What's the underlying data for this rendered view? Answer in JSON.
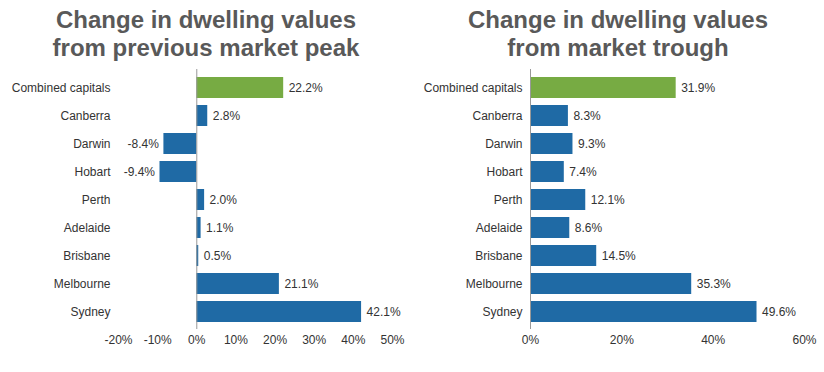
{
  "chart_data": [
    {
      "type": "bar",
      "orientation": "horizontal",
      "title": "Change in dwelling values from previous market peak",
      "categories": [
        "Combined capitals",
        "Canberra",
        "Darwin",
        "Hobart",
        "Perth",
        "Adelaide",
        "Brisbane",
        "Melbourne",
        "Sydney"
      ],
      "values": [
        22.2,
        2.8,
        -8.4,
        -9.4,
        2.0,
        1.1,
        0.5,
        21.1,
        42.1
      ],
      "value_labels": [
        "22.2%",
        "2.8%",
        "-8.4%",
        "-9.4%",
        "2.0%",
        "1.1%",
        "0.5%",
        "21.1%",
        "42.1%"
      ],
      "colors": [
        "#77ab43",
        "#1f6aa5",
        "#1f6aa5",
        "#1f6aa5",
        "#1f6aa5",
        "#1f6aa5",
        "#1f6aa5",
        "#1f6aa5",
        "#1f6aa5"
      ],
      "data_labels": true,
      "grid": false,
      "xlim": [
        -20,
        50
      ],
      "xticks": [
        {
          "value": -20,
          "label": "-20%"
        },
        {
          "value": -10,
          "label": "-10%"
        },
        {
          "value": 0,
          "label": "0%"
        },
        {
          "value": 10,
          "label": "10%"
        },
        {
          "value": 20,
          "label": "20%"
        },
        {
          "value": 30,
          "label": "30%"
        },
        {
          "value": 40,
          "label": "40%"
        },
        {
          "value": 50,
          "label": "50%"
        }
      ]
    },
    {
      "type": "bar",
      "orientation": "horizontal",
      "title": "Change in dwelling values from market trough",
      "categories": [
        "Combined capitals",
        "Canberra",
        "Darwin",
        "Hobart",
        "Perth",
        "Adelaide",
        "Brisbane",
        "Melbourne",
        "Sydney"
      ],
      "values": [
        31.9,
        8.3,
        9.3,
        7.4,
        12.1,
        8.6,
        14.5,
        35.3,
        49.6
      ],
      "value_labels": [
        "31.9%",
        "8.3%",
        "9.3%",
        "7.4%",
        "12.1%",
        "8.6%",
        "14.5%",
        "35.3%",
        "49.6%"
      ],
      "colors": [
        "#77ab43",
        "#1f6aa5",
        "#1f6aa5",
        "#1f6aa5",
        "#1f6aa5",
        "#1f6aa5",
        "#1f6aa5",
        "#1f6aa5",
        "#1f6aa5"
      ],
      "data_labels": true,
      "grid": false,
      "xlim": [
        0,
        60
      ],
      "xticks": [
        {
          "value": 0,
          "label": "0%"
        },
        {
          "value": 20,
          "label": "20%"
        },
        {
          "value": 40,
          "label": "40%"
        },
        {
          "value": 60,
          "label": "60%"
        }
      ]
    }
  ]
}
